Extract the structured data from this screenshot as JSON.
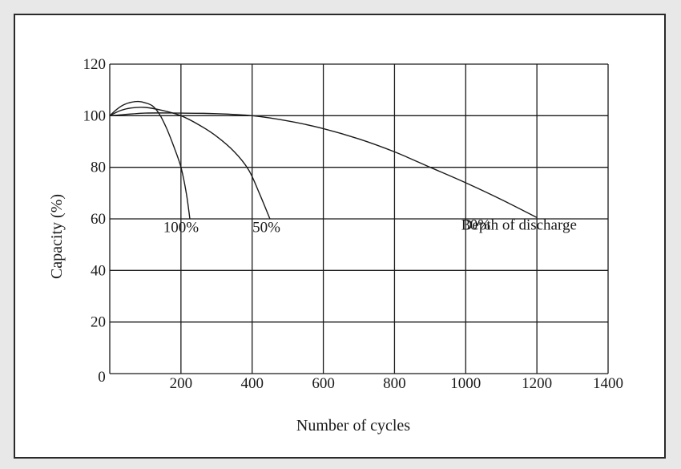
{
  "chart_data": {
    "type": "line",
    "title": "",
    "xlabel": "Number of cycles",
    "ylabel": "Capacity (%)",
    "xlim": [
      0,
      1400
    ],
    "ylim": [
      0,
      120
    ],
    "x_ticks": [
      0,
      200,
      400,
      600,
      800,
      1000,
      1200,
      1400
    ],
    "y_ticks": [
      0,
      20,
      40,
      60,
      80,
      100,
      120
    ],
    "x_tick_labels": [
      "0",
      "200",
      "400",
      "600",
      "800",
      "1000",
      "1200",
      "1400"
    ],
    "y_tick_labels": [
      "0",
      "20",
      "40",
      "60",
      "80",
      "100",
      "120"
    ],
    "grid": true,
    "legend": "none",
    "series": [
      {
        "name": "100%",
        "label_x": 200,
        "label_y": 57,
        "color": "#1a1a1a",
        "points": [
          [
            0,
            100
          ],
          [
            20,
            102.5
          ],
          [
            40,
            104.3
          ],
          [
            60,
            105.2
          ],
          [
            80,
            105.5
          ],
          [
            100,
            105
          ],
          [
            120,
            103.8
          ],
          [
            140,
            100.5
          ],
          [
            160,
            95
          ],
          [
            180,
            88
          ],
          [
            200,
            80
          ],
          [
            215,
            70
          ],
          [
            225,
            60
          ]
        ]
      },
      {
        "name": "50%",
        "label_x": 440,
        "label_y": 57,
        "color": "#1a1a1a",
        "points": [
          [
            0,
            100
          ],
          [
            30,
            102
          ],
          [
            60,
            103
          ],
          [
            100,
            103.2
          ],
          [
            150,
            102
          ],
          [
            200,
            100
          ],
          [
            250,
            96.5
          ],
          [
            300,
            92
          ],
          [
            350,
            86
          ],
          [
            390,
            79
          ],
          [
            420,
            70
          ],
          [
            450,
            60
          ]
        ]
      },
      {
        "name": "30%",
        "label_x": 1030,
        "label_y": 58,
        "color": "#1a1a1a",
        "points": [
          [
            0,
            100
          ],
          [
            100,
            101
          ],
          [
            200,
            101
          ],
          [
            300,
            100.8
          ],
          [
            400,
            100
          ],
          [
            500,
            98
          ],
          [
            600,
            95
          ],
          [
            700,
            91
          ],
          [
            800,
            86
          ],
          [
            900,
            80
          ],
          [
            1000,
            74
          ],
          [
            1100,
            67.5
          ],
          [
            1200,
            60.5
          ]
        ]
      }
    ],
    "annotations": [
      {
        "text": "Depth of discharge",
        "x": 1235,
        "y": 58
      }
    ]
  }
}
